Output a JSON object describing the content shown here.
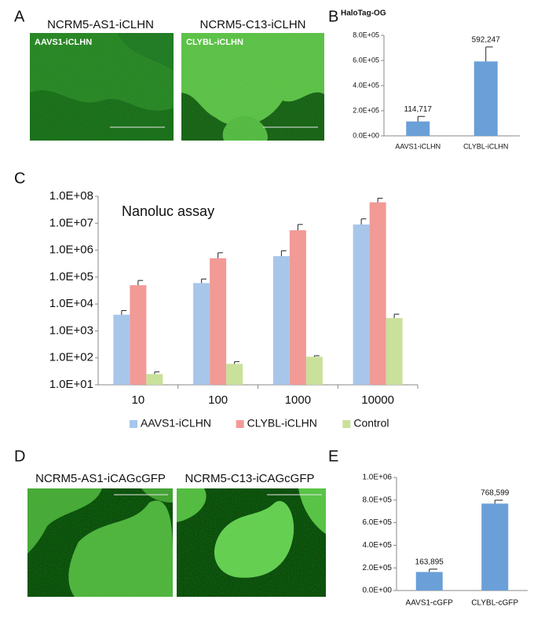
{
  "figure": {
    "panel_labels": [
      "A",
      "B",
      "C",
      "D",
      "E"
    ],
    "images": [
      {
        "title": "NCRM5-AS1-iCLHN",
        "label": "AAVS1-iCLHN"
      },
      {
        "title": "NCRM5-C13-iCLHN",
        "label": "CLYBL-iCLHN"
      },
      {
        "title": "NCRM5-AS1-iCAGcGFP"
      },
      {
        "title": "NCRM5-C13-iCAGcGFP"
      }
    ]
  },
  "chart_data": [
    {
      "type": "bar",
      "title": "HaloTag-OG",
      "categories": [
        "AAVS1-iCLHN",
        "CLYBL-iCLHN"
      ],
      "values": [
        114717,
        592247
      ],
      "value_labels": [
        "114,717",
        "592,247"
      ],
      "errors": [
        40000,
        115000
      ],
      "color": "#6a9fd8",
      "ylim": [
        0,
        800000
      ],
      "yticks": [
        {
          "value": 0,
          "label": "0.0E+00"
        },
        {
          "value": 200000,
          "label": "2.0E+05"
        },
        {
          "value": 400000,
          "label": "4.0E+05"
        },
        {
          "value": 600000,
          "label": "6.0E+05"
        },
        {
          "value": 800000,
          "label": "8.0E+05"
        }
      ]
    },
    {
      "type": "bar",
      "annotation": "Nanoluc assay",
      "log_scale": true,
      "legend": "bottom",
      "categories": [
        "10",
        "100",
        "1000",
        "10000"
      ],
      "series": [
        {
          "name": "AAVS1-iCLHN",
          "color": "#a7c6ea",
          "values": [
            4000,
            60000,
            600000,
            9000000
          ],
          "errors": [
            1700,
            25000,
            350000,
            5500000
          ]
        },
        {
          "name": "CLYBL-iCLHN",
          "color": "#f19a96",
          "values": [
            50000,
            500000,
            5500000,
            60000000
          ],
          "errors": [
            25000,
            300000,
            3500000,
            25000000
          ]
        },
        {
          "name": "Control",
          "color": "#c9e19a",
          "values": [
            25,
            60,
            110,
            3000
          ],
          "errors": [
            5,
            12,
            10,
            1200
          ]
        }
      ],
      "ylim": [
        10,
        100000000
      ],
      "yticks": [
        {
          "value": 10,
          "label": "1.0E+01"
        },
        {
          "value": 100,
          "label": "1.0E+02"
        },
        {
          "value": 1000,
          "label": "1.0E+03"
        },
        {
          "value": 10000,
          "label": "1.0E+04"
        },
        {
          "value": 100000,
          "label": "1.0E+05"
        },
        {
          "value": 1000000,
          "label": "1.0E+06"
        },
        {
          "value": 10000000,
          "label": "1.0E+07"
        },
        {
          "value": 100000000,
          "label": "1.0E+08"
        }
      ]
    },
    {
      "type": "bar",
      "categories": [
        "AAVS1-cGFP",
        "CLYBL-cGFP"
      ],
      "values": [
        163895,
        768599
      ],
      "value_labels": [
        "163,895",
        "768,599"
      ],
      "errors": [
        25000,
        30000
      ],
      "color": "#6a9fd8",
      "ylim": [
        0,
        1000000
      ],
      "yticks": [
        {
          "value": 0,
          "label": "0.0E+00"
        },
        {
          "value": 200000,
          "label": "2.0E+05"
        },
        {
          "value": 400000,
          "label": "4.0E+05"
        },
        {
          "value": 600000,
          "label": "6.0E+05"
        },
        {
          "value": 800000,
          "label": "8.0E+05"
        },
        {
          "value": 1000000,
          "label": "1.0E+06"
        }
      ]
    }
  ]
}
